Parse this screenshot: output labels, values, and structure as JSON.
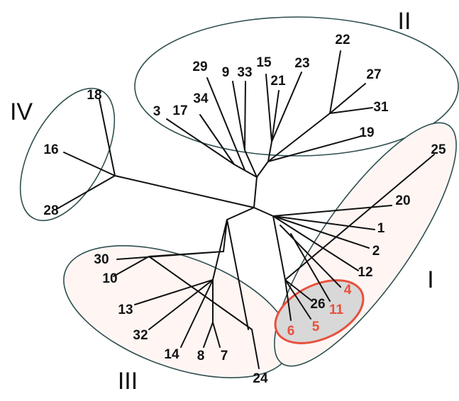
{
  "clusters": [
    "I",
    "II",
    "III",
    "IV"
  ],
  "leaves": [
    "1",
    "2",
    "3",
    "4",
    "5",
    "6",
    "7",
    "8",
    "9",
    "10",
    "11",
    "12",
    "13",
    "14",
    "15",
    "16",
    "17",
    "18",
    "19",
    "20",
    "21",
    "22",
    "23",
    "24",
    "25",
    "26",
    "27",
    "28",
    "29",
    "30",
    "31",
    "32",
    "33",
    "34"
  ]
}
